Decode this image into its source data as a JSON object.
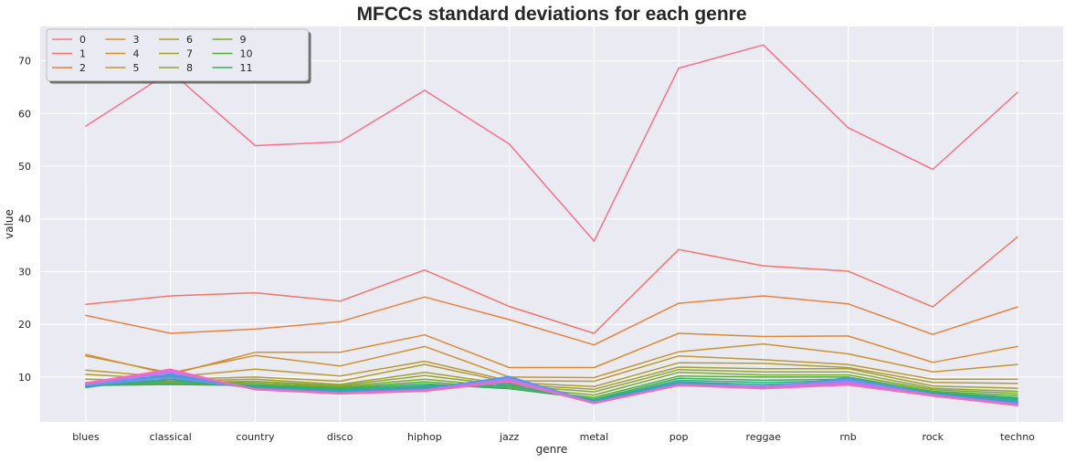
{
  "chart_data": {
    "type": "line",
    "title": "MFCCs standard deviations for each genre",
    "xlabel": "genre",
    "ylabel": "value",
    "categories": [
      "blues",
      "classical",
      "country",
      "disco",
      "hiphop",
      "jazz",
      "metal",
      "pop",
      "reggae",
      "rnb",
      "rock",
      "techno"
    ],
    "ylim": [
      1.5,
      76.5
    ],
    "yticks": [
      10,
      20,
      30,
      40,
      50,
      60,
      70
    ],
    "grid": true,
    "legend_position": "top-left",
    "legend_columns": 5,
    "series": [
      {
        "name": "0",
        "color": "#f77189",
        "values": [
          57.6,
          68.0,
          53.9,
          54.6,
          64.4,
          54.2,
          35.8,
          68.6,
          73.0,
          57.3,
          49.4,
          64.0
        ]
      },
      {
        "name": "1",
        "color": "#f3756a",
        "values": [
          23.8,
          25.4,
          26.0,
          24.4,
          30.3,
          23.4,
          18.3,
          34.2,
          31.1,
          30.1,
          23.3,
          36.6
        ]
      },
      {
        "name": "2",
        "color": "#e7823d",
        "values": [
          21.7,
          18.3,
          19.1,
          20.5,
          25.2,
          20.9,
          16.1,
          24.0,
          25.4,
          23.9,
          18.1,
          23.3
        ]
      },
      {
        "name": "3",
        "color": "#d98c33",
        "values": [
          14.3,
          10.5,
          14.7,
          14.7,
          18.0,
          11.8,
          11.8,
          18.3,
          17.7,
          17.8,
          12.8,
          15.8
        ]
      },
      {
        "name": "4",
        "color": "#c99334",
        "values": [
          14.0,
          10.8,
          14.1,
          12.1,
          15.8,
          10.0,
          9.9,
          14.8,
          16.3,
          14.4,
          11.0,
          12.4
        ]
      },
      {
        "name": "5",
        "color": "#bb9834",
        "values": [
          11.3,
          10.0,
          11.5,
          10.2,
          13.0,
          9.3,
          9.2,
          14.0,
          13.3,
          12.4,
          9.6,
          9.6
        ]
      },
      {
        "name": "6",
        "color": "#ad9c33",
        "values": [
          10.5,
          9.6,
          10.0,
          9.2,
          12.4,
          9.0,
          8.2,
          12.7,
          12.6,
          11.8,
          9.0,
          8.8
        ]
      },
      {
        "name": "7",
        "color": "#a1a033",
        "values": [
          9.6,
          9.2,
          9.6,
          8.6,
          10.9,
          8.6,
          7.7,
          11.9,
          11.6,
          11.6,
          8.3,
          7.9
        ]
      },
      {
        "name": "8",
        "color": "#90a533",
        "values": [
          9.0,
          9.0,
          9.2,
          8.4,
          10.3,
          8.4,
          7.2,
          11.4,
          11.0,
          11.0,
          7.9,
          7.3
        ]
      },
      {
        "name": "9",
        "color": "#7da933",
        "values": [
          8.9,
          8.9,
          8.9,
          8.2,
          9.6,
          8.1,
          6.6,
          10.9,
          10.4,
          10.4,
          7.6,
          6.9
        ]
      },
      {
        "name": "10",
        "color": "#55ae3a",
        "values": [
          8.7,
          8.7,
          8.6,
          8.0,
          9.1,
          7.9,
          6.1,
          10.2,
          10.0,
          10.0,
          7.3,
          6.5
        ]
      },
      {
        "name": "11",
        "color": "#36ad5f",
        "values": [
          8.4,
          8.6,
          8.4,
          7.8,
          8.7,
          7.8,
          5.8,
          9.8,
          9.4,
          9.6,
          7.1,
          6.1
        ]
      },
      {
        "name": "",
        "color": "#35ab7e",
        "values": [
          8.3,
          9.3,
          8.2,
          7.6,
          8.4,
          8.4,
          5.6,
          9.4,
          9.0,
          9.3,
          7.0,
          5.9
        ]
      },
      {
        "name": "",
        "color": "#36a992",
        "values": [
          8.2,
          9.6,
          8.1,
          7.5,
          8.2,
          8.8,
          5.5,
          9.1,
          8.6,
          9.1,
          6.9,
          5.7
        ]
      },
      {
        "name": "",
        "color": "#38a7a5",
        "values": [
          8.1,
          10.0,
          8.0,
          7.4,
          8.0,
          9.2,
          5.4,
          9.0,
          8.2,
          9.5,
          6.9,
          5.5
        ]
      },
      {
        "name": "",
        "color": "#3aa4b6",
        "values": [
          8.0,
          10.3,
          7.9,
          7.3,
          7.9,
          9.6,
          5.3,
          8.9,
          7.9,
          9.9,
          6.8,
          5.3
        ]
      },
      {
        "name": "",
        "color": "#3ca1c9",
        "values": [
          8.4,
          10.5,
          7.9,
          7.2,
          7.8,
          10.0,
          5.3,
          8.8,
          7.8,
          9.8,
          6.8,
          5.1
        ]
      },
      {
        "name": "",
        "color": "#4d9ae0",
        "values": [
          8.6,
          10.2,
          7.9,
          7.1,
          7.7,
          10.1,
          5.2,
          8.7,
          8.1,
          9.6,
          6.7,
          5.0
        ]
      },
      {
        "name": "",
        "color": "#7d8ff2",
        "values": [
          8.5,
          9.9,
          7.8,
          7.0,
          7.6,
          9.8,
          5.2,
          8.6,
          8.3,
          9.4,
          6.7,
          4.9
        ]
      },
      {
        "name": "",
        "color": "#a283f4",
        "values": [
          8.6,
          10.8,
          7.8,
          7.0,
          7.5,
          9.6,
          5.1,
          8.6,
          8.2,
          9.1,
          6.6,
          4.9
        ]
      },
      {
        "name": "",
        "color": "#c474f4",
        "values": [
          8.7,
          11.0,
          7.7,
          7.0,
          7.5,
          9.4,
          5.1,
          8.5,
          8.0,
          8.9,
          6.6,
          4.8
        ]
      },
      {
        "name": "",
        "color": "#e26be8",
        "values": [
          8.8,
          11.2,
          7.7,
          6.9,
          7.4,
          9.3,
          5.0,
          8.5,
          7.9,
          8.7,
          6.5,
          4.7
        ]
      },
      {
        "name": "",
        "color": "#f16bc8",
        "values": [
          8.9,
          11.4,
          7.6,
          6.9,
          7.4,
          9.2,
          5.0,
          8.4,
          7.9,
          8.6,
          6.5,
          4.6
        ]
      },
      {
        "name": "",
        "color": "#f56ea9",
        "values": [
          8.9,
          11.5,
          7.6,
          6.8,
          7.3,
          9.1,
          5.0,
          8.4,
          7.8,
          8.5,
          6.4,
          4.6
        ]
      }
    ]
  }
}
